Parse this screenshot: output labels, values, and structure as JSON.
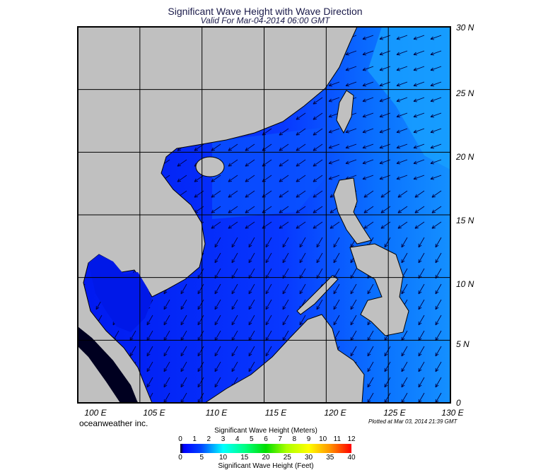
{
  "title": "Significant Wave Height with Wave Direction",
  "subtitle": "Valid For Mar-04-2014 06:00 GMT",
  "map": {
    "region": "South China Sea",
    "lon_labels": [
      "100 E",
      "105 E",
      "110 E",
      "115 E",
      "120 E",
      "125 E",
      "130 E"
    ],
    "lat_labels": [
      "30 N",
      "25 N",
      "20 N",
      "15 N",
      "10 N",
      "5 N",
      "0"
    ],
    "land_color": "#c0c0c0",
    "wave_direction": "from northeast",
    "arrow_color": "#000040"
  },
  "brand": "oceanweather inc.",
  "plotted": "Plotted at Mar 03, 2014 21:39 GMT",
  "colorbar": {
    "meters_title": "Significant Wave Height (Meters)",
    "meters_ticks": [
      "0",
      "1",
      "2",
      "3",
      "4",
      "5",
      "6",
      "7",
      "8",
      "9",
      "10",
      "11",
      "12"
    ],
    "feet_title": "Significant Wave Height (Feet)",
    "feet_ticks": [
      "0",
      "5",
      "10",
      "15",
      "20",
      "25",
      "30",
      "35",
      "40"
    ]
  }
}
